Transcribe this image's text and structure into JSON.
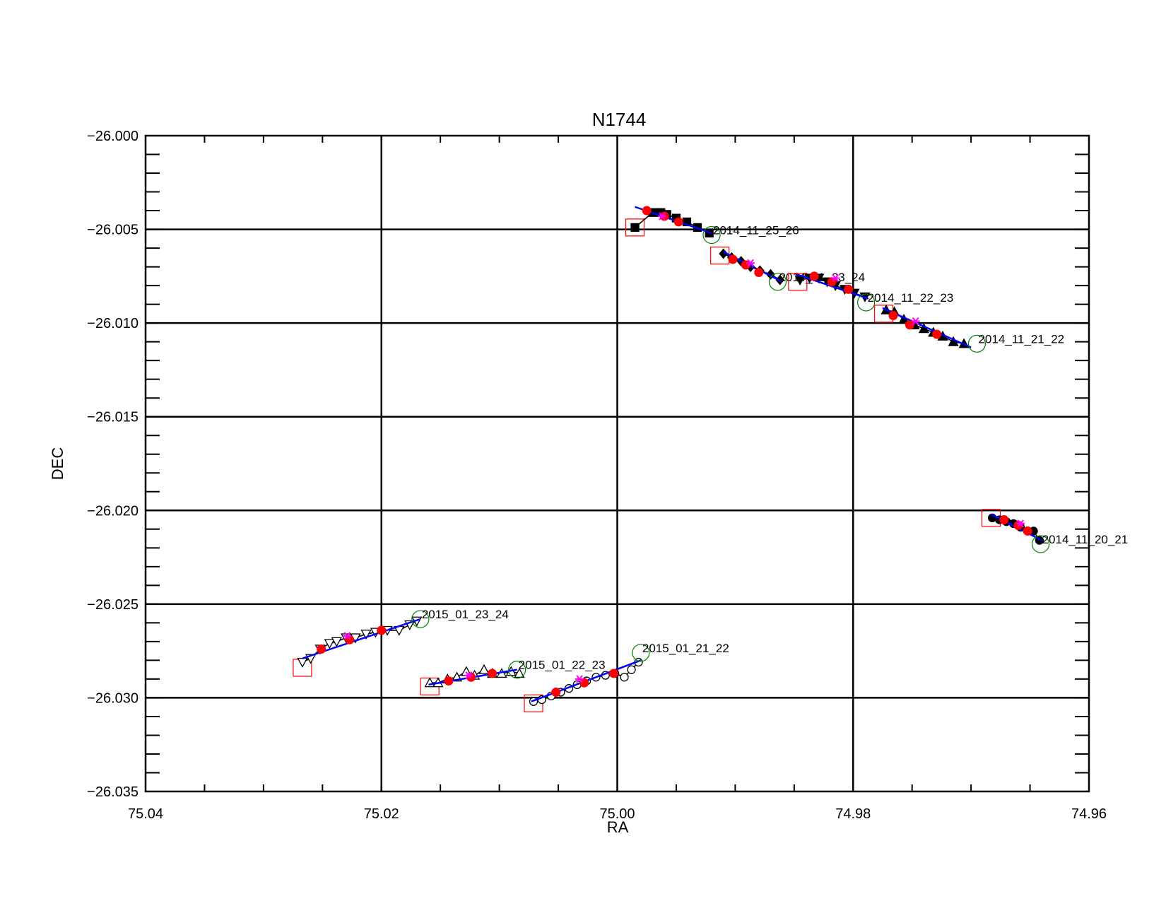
{
  "chart_data": {
    "type": "scatter",
    "title": "N1744",
    "xlabel": "RA",
    "ylabel": "DEC",
    "xlim": [
      75.04,
      74.96
    ],
    "ylim": [
      -26.035,
      -26.0
    ],
    "x_ticks": [
      75.04,
      75.02,
      75.0,
      74.98,
      74.96
    ],
    "x_tick_labels": [
      "75.04",
      "75.02",
      "75.00",
      "74.98",
      "74.96"
    ],
    "y_ticks": [
      -26.0,
      -26.005,
      -26.01,
      -26.015,
      -26.02,
      -26.025,
      -26.03,
      -26.035
    ],
    "y_tick_labels": [
      "−26.000",
      "−26.005",
      "−26.010",
      "−26.015",
      "−26.020",
      "−26.025",
      "−26.030",
      "−26.035"
    ],
    "grid": true,
    "colors": {
      "track": "#000000",
      "fit_line": "#0000ff",
      "red_points": "#ff0000",
      "magenta_marker": "#ff00ff",
      "start_box": "#ff0000",
      "end_circle": "#008000"
    },
    "series": [
      {
        "name": "2014_11_25_26",
        "marker": "filled-square",
        "points": [
          [
            74.9985,
            -26.0049
          ],
          [
            74.997,
            -26.0041
          ],
          [
            74.9963,
            -26.0041
          ],
          [
            74.9958,
            -26.0042
          ],
          [
            74.995,
            -26.0044
          ],
          [
            74.9941,
            -26.0046
          ],
          [
            74.9932,
            -26.0049
          ],
          [
            74.9922,
            -26.0052
          ]
        ],
        "fit": [
          [
            74.9985,
            -26.0038
          ],
          [
            74.992,
            -26.0052
          ]
        ],
        "red": [
          [
            74.9975,
            -26.004
          ],
          [
            74.996,
            -26.0043
          ],
          [
            74.9948,
            -26.0046
          ]
        ],
        "magenta": [
          [
            74.9962,
            -26.0043
          ]
        ],
        "start": [
          74.9985,
          -26.0049
        ],
        "end": [
          74.992,
          -26.0053
        ]
      },
      {
        "name": "2014_11_23_24",
        "marker": "filled-diamond",
        "points": [
          [
            74.991,
            -26.0063
          ],
          [
            74.9903,
            -26.0065
          ],
          [
            74.9895,
            -26.0067
          ],
          [
            74.9887,
            -26.007
          ],
          [
            74.9879,
            -26.0072
          ],
          [
            74.987,
            -26.0074
          ],
          [
            74.9862,
            -26.0077
          ]
        ],
        "fit": [
          [
            74.991,
            -26.0062
          ],
          [
            74.986,
            -26.0078
          ]
        ],
        "red": [
          [
            74.9902,
            -26.0066
          ],
          [
            74.9891,
            -26.0069
          ],
          [
            74.988,
            -26.0073
          ]
        ],
        "magenta": [
          [
            74.9887,
            -26.0068
          ]
        ],
        "start": [
          74.9913,
          -26.0064
        ],
        "end": [
          74.9864,
          -26.0078
        ]
      },
      {
        "name": "2014_11_22_23",
        "marker": "filled-triangle-down",
        "points": [
          [
            74.9845,
            -26.0077
          ],
          [
            74.9837,
            -26.0076
          ],
          [
            74.9829,
            -26.0076
          ],
          [
            74.9822,
            -26.0078
          ],
          [
            74.9815,
            -26.008
          ],
          [
            74.9807,
            -26.0082
          ],
          [
            74.9799,
            -26.0084
          ],
          [
            74.979,
            -26.0086
          ]
        ],
        "fit": [
          [
            74.9848,
            -26.0074
          ],
          [
            74.9787,
            -26.0087
          ]
        ],
        "red": [
          [
            74.9833,
            -26.0075
          ],
          [
            74.9818,
            -26.0078
          ],
          [
            74.9804,
            -26.0082
          ]
        ],
        "magenta": [
          [
            74.9815,
            -26.0076
          ]
        ],
        "start": [
          74.9847,
          -26.0078
        ],
        "end": [
          74.9789,
          -26.0089
        ]
      },
      {
        "name": "2014_11_21_22",
        "marker": "filled-triangle-up",
        "points": [
          [
            74.9772,
            -26.0093
          ],
          [
            74.9765,
            -26.0094
          ],
          [
            74.9757,
            -26.0098
          ],
          [
            74.9748,
            -26.0101
          ],
          [
            74.974,
            -26.0103
          ],
          [
            74.9732,
            -26.0105
          ],
          [
            74.9724,
            -26.0107
          ],
          [
            74.9715,
            -26.011
          ],
          [
            74.9706,
            -26.0111
          ]
        ],
        "fit": [
          [
            74.9775,
            -26.0092
          ],
          [
            74.97,
            -26.0113
          ]
        ],
        "red": [
          [
            74.9766,
            -26.0096
          ],
          [
            74.9752,
            -26.0101
          ],
          [
            74.9729,
            -26.0106
          ]
        ],
        "magenta": [
          [
            74.9747,
            -26.0099
          ]
        ],
        "start": [
          74.9774,
          -26.0095
        ],
        "end": [
          74.9695,
          -26.0111
        ]
      },
      {
        "name": "2014_11_20_21",
        "marker": "filled-circle",
        "points": [
          [
            74.9682,
            -26.0204
          ],
          [
            74.9676,
            -26.0205
          ],
          [
            74.967,
            -26.0206
          ],
          [
            74.9664,
            -26.0207
          ],
          [
            74.9658,
            -26.0209
          ],
          [
            74.9652,
            -26.0211
          ],
          [
            74.9647,
            -26.0211
          ],
          [
            74.9642,
            -26.0216
          ]
        ],
        "fit": [
          [
            74.9683,
            -26.0202
          ],
          [
            74.964,
            -26.0216
          ]
        ],
        "red": [
          [
            74.9672,
            -26.0205
          ],
          [
            74.966,
            -26.0208
          ],
          [
            74.9652,
            -26.0211
          ]
        ],
        "magenta": [
          [
            74.9658,
            -26.0207
          ]
        ],
        "start": [
          74.9683,
          -26.0204
        ],
        "end": [
          74.9641,
          -26.0218
        ]
      },
      {
        "name": "2015_01_23_24",
        "marker": "open-triangle-down",
        "points": [
          [
            75.0267,
            -26.0281
          ],
          [
            75.026,
            -26.0279
          ],
          [
            75.0252,
            -26.0274
          ],
          [
            75.0244,
            -26.0271
          ],
          [
            75.0238,
            -26.027
          ],
          [
            75.023,
            -26.0268
          ],
          [
            75.0222,
            -26.0268
          ],
          [
            75.0213,
            -26.0266
          ],
          [
            75.0205,
            -26.0265
          ],
          [
            75.0195,
            -26.0264
          ],
          [
            75.0185,
            -26.0264
          ],
          [
            75.0176,
            -26.0261
          ],
          [
            75.017,
            -26.0259
          ]
        ],
        "fit": [
          [
            75.0267,
            -26.0279
          ],
          [
            75.0167,
            -26.0258
          ]
        ],
        "red": [
          [
            75.0251,
            -26.0274
          ],
          [
            75.0227,
            -26.0269
          ],
          [
            75.02,
            -26.0264
          ]
        ],
        "magenta": [
          [
            75.0229,
            -26.0267
          ]
        ],
        "start": [
          75.0267,
          -26.0284
        ],
        "end": [
          75.0167,
          -26.0258
        ]
      },
      {
        "name": "2015_01_22_23",
        "marker": "open-triangle-up",
        "points": [
          [
            75.0159,
            -26.0292
          ],
          [
            75.0152,
            -26.0292
          ],
          [
            75.0144,
            -26.029
          ],
          [
            75.0136,
            -26.0289
          ],
          [
            75.0128,
            -26.0286
          ],
          [
            75.0121,
            -26.0288
          ],
          [
            75.0113,
            -26.0285
          ],
          [
            75.0106,
            -26.0287
          ],
          [
            75.0098,
            -26.0287
          ],
          [
            75.009,
            -26.0286
          ],
          [
            75.0083,
            -26.0287
          ]
        ],
        "fit": [
          [
            75.016,
            -26.0293
          ],
          [
            75.0085,
            -26.0285
          ]
        ],
        "red": [
          [
            75.0143,
            -26.0291
          ],
          [
            75.0124,
            -26.0289
          ],
          [
            75.0106,
            -26.0287
          ]
        ],
        "magenta": [
          [
            75.0126,
            -26.0288
          ]
        ],
        "start": [
          75.0159,
          -26.0294
        ],
        "end": [
          75.0085,
          -26.0285
        ]
      },
      {
        "name": "2015_01_21_22",
        "marker": "open-circle",
        "points": [
          [
            75.0071,
            -26.0302
          ],
          [
            75.0064,
            -26.0301
          ],
          [
            75.0056,
            -26.0299
          ],
          [
            75.0048,
            -26.0297
          ],
          [
            75.0041,
            -26.0295
          ],
          [
            75.0034,
            -26.0293
          ],
          [
            75.0026,
            -26.0291
          ],
          [
            75.0018,
            -26.0289
          ],
          [
            75.001,
            -26.0288
          ],
          [
            75.0002,
            -26.0287
          ],
          [
            74.9994,
            -26.0289
          ],
          [
            74.9988,
            -26.0285
          ],
          [
            74.9982,
            -26.0281
          ]
        ],
        "fit": [
          [
            75.0073,
            -26.0302
          ],
          [
            74.998,
            -26.028
          ]
        ],
        "red": [
          [
            75.0052,
            -26.0297
          ],
          [
            75.0028,
            -26.0292
          ],
          [
            75.0003,
            -26.0287
          ]
        ],
        "magenta": [
          [
            75.0032,
            -26.029
          ]
        ],
        "start": [
          75.0071,
          -26.0303
        ],
        "end": [
          74.998,
          -26.0276
        ]
      }
    ]
  }
}
